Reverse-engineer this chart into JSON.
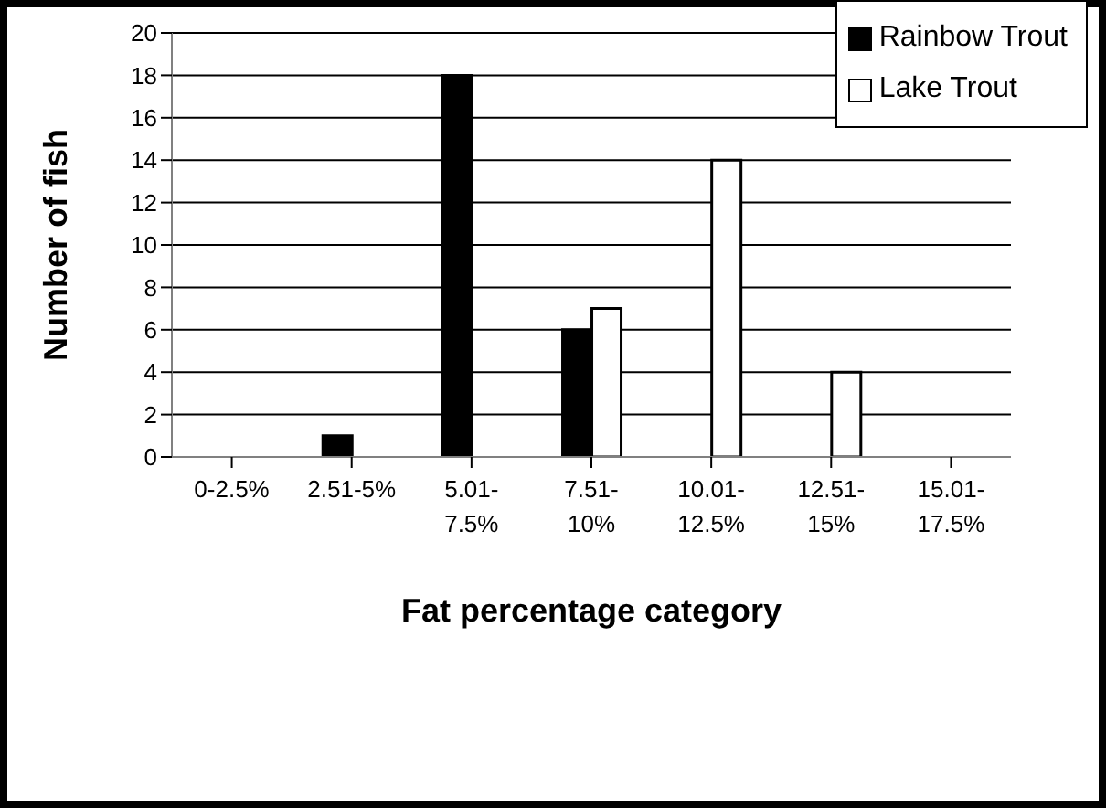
{
  "chart_data": {
    "type": "bar",
    "xlabel": "Fat percentage category",
    "ylabel": "Number of fish",
    "categories": [
      "0-2.5%",
      "2.51-5%",
      "5.01-7.5%",
      "7.51-10%",
      "10.01-12.5%",
      "12.51-15%",
      "15.01-17.5%"
    ],
    "series": [
      {
        "name": "Rainbow Trout",
        "color": "#000000",
        "values": [
          0,
          1,
          18,
          6,
          0,
          0,
          0
        ]
      },
      {
        "name": "Lake Trout",
        "color": "#ffffff",
        "values": [
          0,
          0,
          0,
          7,
          14,
          4,
          0
        ]
      }
    ],
    "ylim": [
      0,
      20
    ],
    "yticks": [
      0,
      2,
      4,
      6,
      8,
      10,
      12,
      14,
      16,
      18,
      20
    ],
    "grid": "y",
    "legend": "top right"
  }
}
